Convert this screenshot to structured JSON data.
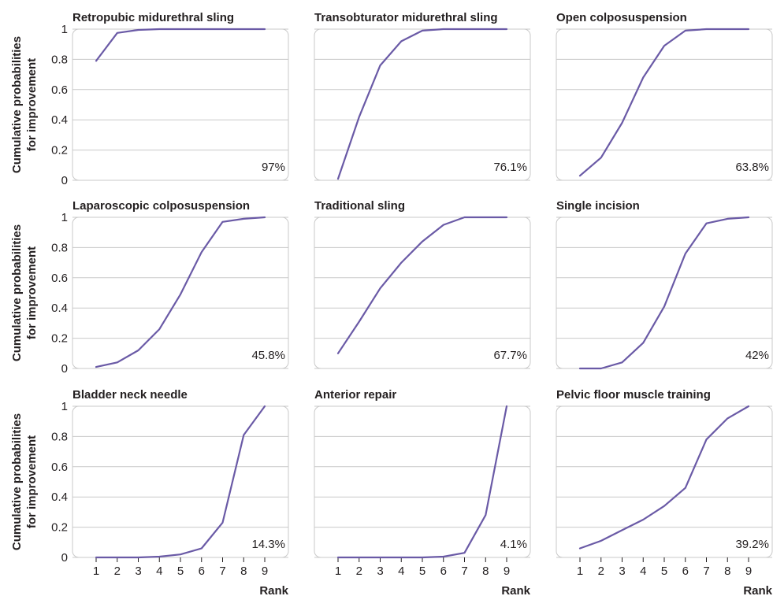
{
  "colors": {
    "line": "#6a5aa6",
    "grid": "#c9c9c9",
    "text": "#231f20"
  },
  "chart_data": {
    "type": "line",
    "layout": "3x3 small multiples",
    "shared_ylabel": "Cumulative probabilities for improvement",
    "shared_ylabel_lines": [
      "Cumulative probabilities",
      "for improvement"
    ],
    "shared_xlabel": "Rank",
    "x": [
      1,
      2,
      3,
      4,
      5,
      6,
      7,
      8,
      9
    ],
    "xticks": [
      "1",
      "2",
      "3",
      "4",
      "5",
      "6",
      "7",
      "8",
      "9"
    ],
    "ylim": [
      0,
      1
    ],
    "yticks": [
      "0",
      "0.2",
      "0.4",
      "0.6",
      "0.8",
      "1"
    ],
    "grid": true,
    "panels": [
      {
        "title": "Retropubic midurethral sling",
        "sucra": "97%",
        "values": [
          0.79,
          0.975,
          0.995,
          1.0,
          1.0,
          1.0,
          1.0,
          1.0,
          1.0
        ]
      },
      {
        "title": "Transobturator midurethral sling",
        "sucra": "76.1%",
        "values": [
          0.01,
          0.42,
          0.76,
          0.92,
          0.99,
          1.0,
          1.0,
          1.0,
          1.0
        ]
      },
      {
        "title": "Open colposuspension",
        "sucra": "63.8%",
        "values": [
          0.03,
          0.15,
          0.38,
          0.68,
          0.89,
          0.99,
          1.0,
          1.0,
          1.0
        ]
      },
      {
        "title": "Laparoscopic colposuspension",
        "sucra": "45.8%",
        "values": [
          0.01,
          0.04,
          0.12,
          0.26,
          0.49,
          0.77,
          0.97,
          0.99,
          1.0
        ]
      },
      {
        "title": "Traditional sling",
        "sucra": "67.7%",
        "values": [
          0.1,
          0.31,
          0.53,
          0.7,
          0.84,
          0.95,
          1.0,
          1.0,
          1.0
        ]
      },
      {
        "title": "Single incision",
        "sucra": "42%",
        "values": [
          0.0,
          0.0,
          0.04,
          0.17,
          0.41,
          0.76,
          0.96,
          0.99,
          1.0
        ]
      },
      {
        "title": "Bladder neck needle",
        "sucra": "14.3%",
        "values": [
          0.0,
          0.0,
          0.0,
          0.005,
          0.02,
          0.06,
          0.23,
          0.81,
          1.0
        ]
      },
      {
        "title": "Anterior repair",
        "sucra": "4.1%",
        "values": [
          0.0,
          0.0,
          0.0,
          0.0,
          0.0,
          0.005,
          0.03,
          0.28,
          1.0
        ]
      },
      {
        "title": "Pelvic floor muscle training",
        "sucra": "39.2%",
        "values": [
          0.06,
          0.11,
          0.18,
          0.25,
          0.34,
          0.46,
          0.78,
          0.92,
          1.0
        ]
      }
    ]
  }
}
